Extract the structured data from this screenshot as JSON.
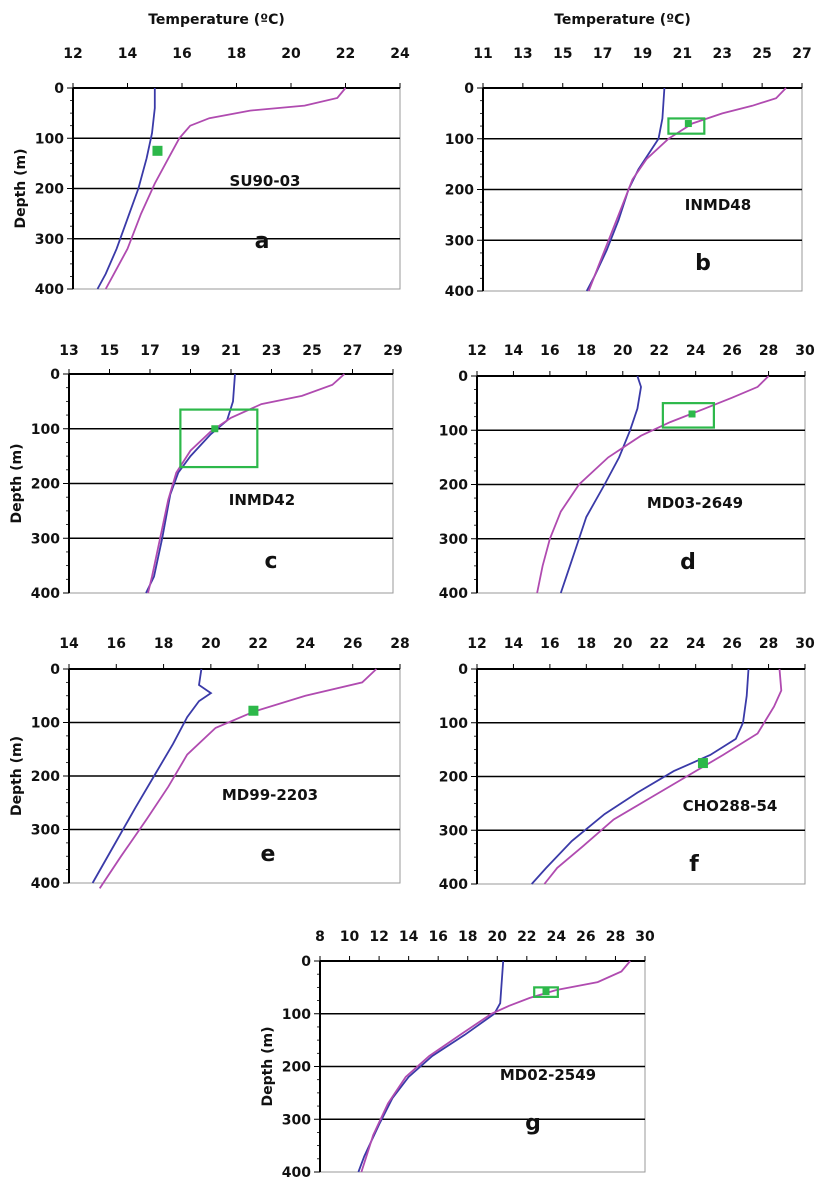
{
  "chart_data": [
    {
      "type": "line",
      "panel_letter": "a",
      "station_label": "SU90-03",
      "top_label": "Temperature (ºC)",
      "ylabel": "Depth (m)",
      "xlim": [
        12,
        24
      ],
      "ylim": [
        0,
        400
      ],
      "x_ticks": [
        12,
        14,
        16,
        18,
        20,
        22,
        24
      ],
      "y_ticks": [
        0,
        100,
        200,
        300,
        400
      ],
      "grid_lines": [
        100,
        200,
        300
      ],
      "series": [
        {
          "color": "#3a3aa8",
          "points": [
            [
              15.0,
              0
            ],
            [
              15.0,
              40
            ],
            [
              14.9,
              90
            ],
            [
              14.7,
              140
            ],
            [
              14.4,
              200
            ],
            [
              14.0,
              260
            ],
            [
              13.6,
              320
            ],
            [
              13.2,
              370
            ],
            [
              12.9,
              400
            ]
          ]
        },
        {
          "color": "#b04bb0",
          "points": [
            [
              22.0,
              0
            ],
            [
              21.7,
              20
            ],
            [
              20.5,
              35
            ],
            [
              18.5,
              45
            ],
            [
              17.0,
              60
            ],
            [
              16.3,
              75
            ],
            [
              15.9,
              100
            ],
            [
              15.5,
              140
            ],
            [
              15.0,
              190
            ],
            [
              14.5,
              250
            ],
            [
              14.0,
              320
            ],
            [
              13.5,
              370
            ],
            [
              13.2,
              400
            ]
          ]
        }
      ],
      "markers": [
        {
          "x": 15.1,
          "y": 125
        }
      ],
      "boxes": []
    },
    {
      "type": "line",
      "panel_letter": "b",
      "station_label": "INMD48",
      "top_label": "Temperature (ºC)",
      "ylabel": "",
      "xlim": [
        11,
        27
      ],
      "ylim": [
        0,
        400
      ],
      "x_ticks": [
        11,
        13,
        15,
        17,
        19,
        21,
        23,
        25,
        27
      ],
      "y_ticks": [
        0,
        100,
        200,
        300,
        400
      ],
      "grid_lines": [
        100,
        200,
        300
      ],
      "series": [
        {
          "color": "#3a3aa8",
          "points": [
            [
              20.1,
              0
            ],
            [
              20.0,
              60
            ],
            [
              19.8,
              100
            ],
            [
              19.3,
              130
            ],
            [
              18.8,
              160
            ],
            [
              18.3,
              200
            ],
            [
              17.8,
              260
            ],
            [
              17.2,
              320
            ],
            [
              16.6,
              370
            ],
            [
              16.2,
              400
            ]
          ]
        },
        {
          "color": "#b04bb0",
          "points": [
            [
              26.2,
              0
            ],
            [
              25.7,
              20
            ],
            [
              24.5,
              35
            ],
            [
              23.0,
              50
            ],
            [
              21.5,
              70
            ],
            [
              20.3,
              100
            ],
            [
              19.2,
              140
            ],
            [
              18.5,
              180
            ],
            [
              18.0,
              230
            ],
            [
              17.4,
              290
            ],
            [
              16.8,
              350
            ],
            [
              16.3,
              400
            ]
          ]
        }
      ],
      "markers": [
        {
          "x": 21.3,
          "y": 70
        }
      ],
      "boxes": [
        {
          "x0": 20.3,
          "x1": 22.1,
          "y0": 60,
          "y1": 90
        }
      ]
    },
    {
      "type": "line",
      "panel_letter": "c",
      "station_label": "INMD42",
      "top_label": "",
      "ylabel": "Depth (m)",
      "xlim": [
        13,
        29
      ],
      "ylim": [
        0,
        400
      ],
      "x_ticks": [
        13,
        15,
        17,
        19,
        21,
        23,
        25,
        27,
        29
      ],
      "y_ticks": [
        0,
        100,
        200,
        300,
        400
      ],
      "grid_lines": [
        100,
        200,
        300
      ],
      "series": [
        {
          "color": "#3a3aa8",
          "points": [
            [
              21.2,
              0
            ],
            [
              21.1,
              50
            ],
            [
              20.8,
              85
            ],
            [
              20.0,
              110
            ],
            [
              19.0,
              150
            ],
            [
              18.4,
              180
            ],
            [
              18.0,
              220
            ],
            [
              17.6,
              300
            ],
            [
              17.2,
              370
            ],
            [
              16.8,
              400
            ]
          ]
        },
        {
          "color": "#b04bb0",
          "points": [
            [
              26.6,
              0
            ],
            [
              26.0,
              20
            ],
            [
              24.5,
              40
            ],
            [
              22.5,
              55
            ],
            [
              21.0,
              80
            ],
            [
              20.0,
              105
            ],
            [
              19.0,
              140
            ],
            [
              18.3,
              180
            ],
            [
              17.9,
              230
            ],
            [
              17.5,
              300
            ],
            [
              17.1,
              370
            ],
            [
              16.9,
              400
            ]
          ]
        }
      ],
      "markers": [
        {
          "x": 20.2,
          "y": 100
        }
      ],
      "boxes": [
        {
          "x0": 18.5,
          "x1": 22.3,
          "y0": 65,
          "y1": 170
        }
      ]
    },
    {
      "type": "line",
      "panel_letter": "d",
      "station_label": "MD03-2649",
      "top_label": "",
      "ylabel": "",
      "xlim": [
        12,
        30
      ],
      "ylim": [
        0,
        400
      ],
      "x_ticks": [
        12,
        14,
        16,
        18,
        20,
        22,
        24,
        26,
        28,
        30
      ],
      "y_ticks": [
        0,
        100,
        200,
        300,
        400
      ],
      "grid_lines": [
        100,
        200,
        300
      ],
      "series": [
        {
          "color": "#3a3aa8",
          "points": [
            [
              20.8,
              0
            ],
            [
              21.0,
              20
            ],
            [
              20.8,
              60
            ],
            [
              20.4,
              100
            ],
            [
              19.8,
              150
            ],
            [
              19.0,
              200
            ],
            [
              18.0,
              260
            ],
            [
              17.4,
              320
            ],
            [
              16.9,
              370
            ],
            [
              16.6,
              400
            ]
          ]
        },
        {
          "color": "#b04bb0",
          "points": [
            [
              28.0,
              0
            ],
            [
              27.4,
              20
            ],
            [
              26.0,
              40
            ],
            [
              24.5,
              60
            ],
            [
              22.6,
              85
            ],
            [
              21.0,
              110
            ],
            [
              19.2,
              150
            ],
            [
              17.6,
              200
            ],
            [
              16.6,
              250
            ],
            [
              16.0,
              300
            ],
            [
              15.6,
              350
            ],
            [
              15.3,
              400
            ]
          ]
        }
      ],
      "markers": [
        {
          "x": 23.8,
          "y": 70
        }
      ],
      "boxes": [
        {
          "x0": 22.2,
          "x1": 25.0,
          "y0": 50,
          "y1": 95
        }
      ]
    },
    {
      "type": "line",
      "panel_letter": "e",
      "station_label": "MD99-2203",
      "top_label": "",
      "ylabel": "Depth (m)",
      "xlim": [
        14,
        28
      ],
      "ylim": [
        0,
        400
      ],
      "x_ticks": [
        14,
        16,
        18,
        20,
        22,
        24,
        26,
        28
      ],
      "y_ticks": [
        0,
        100,
        200,
        300,
        400
      ],
      "grid_lines": [
        100,
        200,
        300
      ],
      "series": [
        {
          "color": "#3a3aa8",
          "points": [
            [
              19.6,
              0
            ],
            [
              19.5,
              30
            ],
            [
              20.0,
              45
            ],
            [
              19.5,
              60
            ],
            [
              19.0,
              90
            ],
            [
              18.4,
              140
            ],
            [
              17.6,
              200
            ],
            [
              16.8,
              260
            ],
            [
              15.9,
              330
            ],
            [
              15.0,
              400
            ]
          ]
        },
        {
          "color": "#b04bb0",
          "points": [
            [
              27.0,
              0
            ],
            [
              26.4,
              25
            ],
            [
              24.0,
              50
            ],
            [
              21.8,
              80
            ],
            [
              20.2,
              110
            ],
            [
              19.0,
              160
            ],
            [
              18.2,
              220
            ],
            [
              17.3,
              280
            ],
            [
              16.2,
              350
            ],
            [
              15.3,
              410
            ]
          ]
        }
      ],
      "markers": [
        {
          "x": 21.8,
          "y": 78
        }
      ],
      "boxes": []
    },
    {
      "type": "line",
      "panel_letter": "f",
      "station_label": "CHO288-54",
      "top_label": "",
      "ylabel": "",
      "xlim": [
        12,
        30
      ],
      "ylim": [
        0,
        400
      ],
      "x_ticks": [
        12,
        14,
        16,
        18,
        20,
        22,
        24,
        26,
        28,
        30
      ],
      "y_ticks": [
        0,
        100,
        200,
        300,
        400
      ],
      "grid_lines": [
        100,
        200,
        300
      ],
      "series": [
        {
          "color": "#3a3aa8",
          "points": [
            [
              26.9,
              0
            ],
            [
              26.8,
              50
            ],
            [
              26.6,
              100
            ],
            [
              26.2,
              130
            ],
            [
              24.8,
              160
            ],
            [
              22.8,
              190
            ],
            [
              20.8,
              230
            ],
            [
              19.0,
              270
            ],
            [
              17.2,
              320
            ],
            [
              15.8,
              370
            ],
            [
              15.0,
              400
            ]
          ]
        },
        {
          "color": "#b04bb0",
          "points": [
            [
              28.6,
              0
            ],
            [
              28.7,
              40
            ],
            [
              28.3,
              70
            ],
            [
              27.4,
              120
            ],
            [
              25.5,
              160
            ],
            [
              23.5,
              200
            ],
            [
              21.5,
              240
            ],
            [
              19.5,
              280
            ],
            [
              17.8,
              330
            ],
            [
              16.4,
              370
            ],
            [
              15.7,
              400
            ]
          ]
        }
      ],
      "markers": [
        {
          "x": 24.4,
          "y": 175
        }
      ],
      "boxes": []
    },
    {
      "type": "line",
      "panel_letter": "g",
      "station_label": "MD02-2549",
      "top_label": "",
      "ylabel": "Depth (m)",
      "xlim": [
        8,
        30
      ],
      "ylim": [
        0,
        400
      ],
      "x_ticks": [
        8,
        10,
        12,
        14,
        16,
        18,
        20,
        22,
        24,
        26,
        28,
        30
      ],
      "y_ticks": [
        0,
        100,
        200,
        300,
        400
      ],
      "grid_lines": [
        100,
        200,
        300
      ],
      "series": [
        {
          "color": "#3a3aa8",
          "points": [
            [
              20.4,
              0
            ],
            [
              20.3,
              40
            ],
            [
              20.2,
              80
            ],
            [
              19.8,
              100
            ],
            [
              17.8,
              140
            ],
            [
              15.6,
              180
            ],
            [
              14.0,
              220
            ],
            [
              12.9,
              260
            ],
            [
              12.0,
              310
            ],
            [
              11.0,
              370
            ],
            [
              10.6,
              400
            ]
          ]
        },
        {
          "color": "#b04bb0",
          "points": [
            [
              29.0,
              0
            ],
            [
              28.4,
              20
            ],
            [
              26.8,
              40
            ],
            [
              24.0,
              55
            ],
            [
              22.2,
              70
            ],
            [
              20.8,
              85
            ],
            [
              19.6,
              100
            ],
            [
              17.5,
              140
            ],
            [
              15.4,
              180
            ],
            [
              13.8,
              220
            ],
            [
              12.6,
              270
            ],
            [
              11.6,
              330
            ],
            [
              10.8,
              400
            ]
          ]
        }
      ],
      "markers": [
        {
          "x": 23.3,
          "y": 58
        }
      ],
      "boxes": [
        {
          "x0": 22.5,
          "x1": 24.1,
          "y0": 50,
          "y1": 68
        }
      ]
    }
  ]
}
